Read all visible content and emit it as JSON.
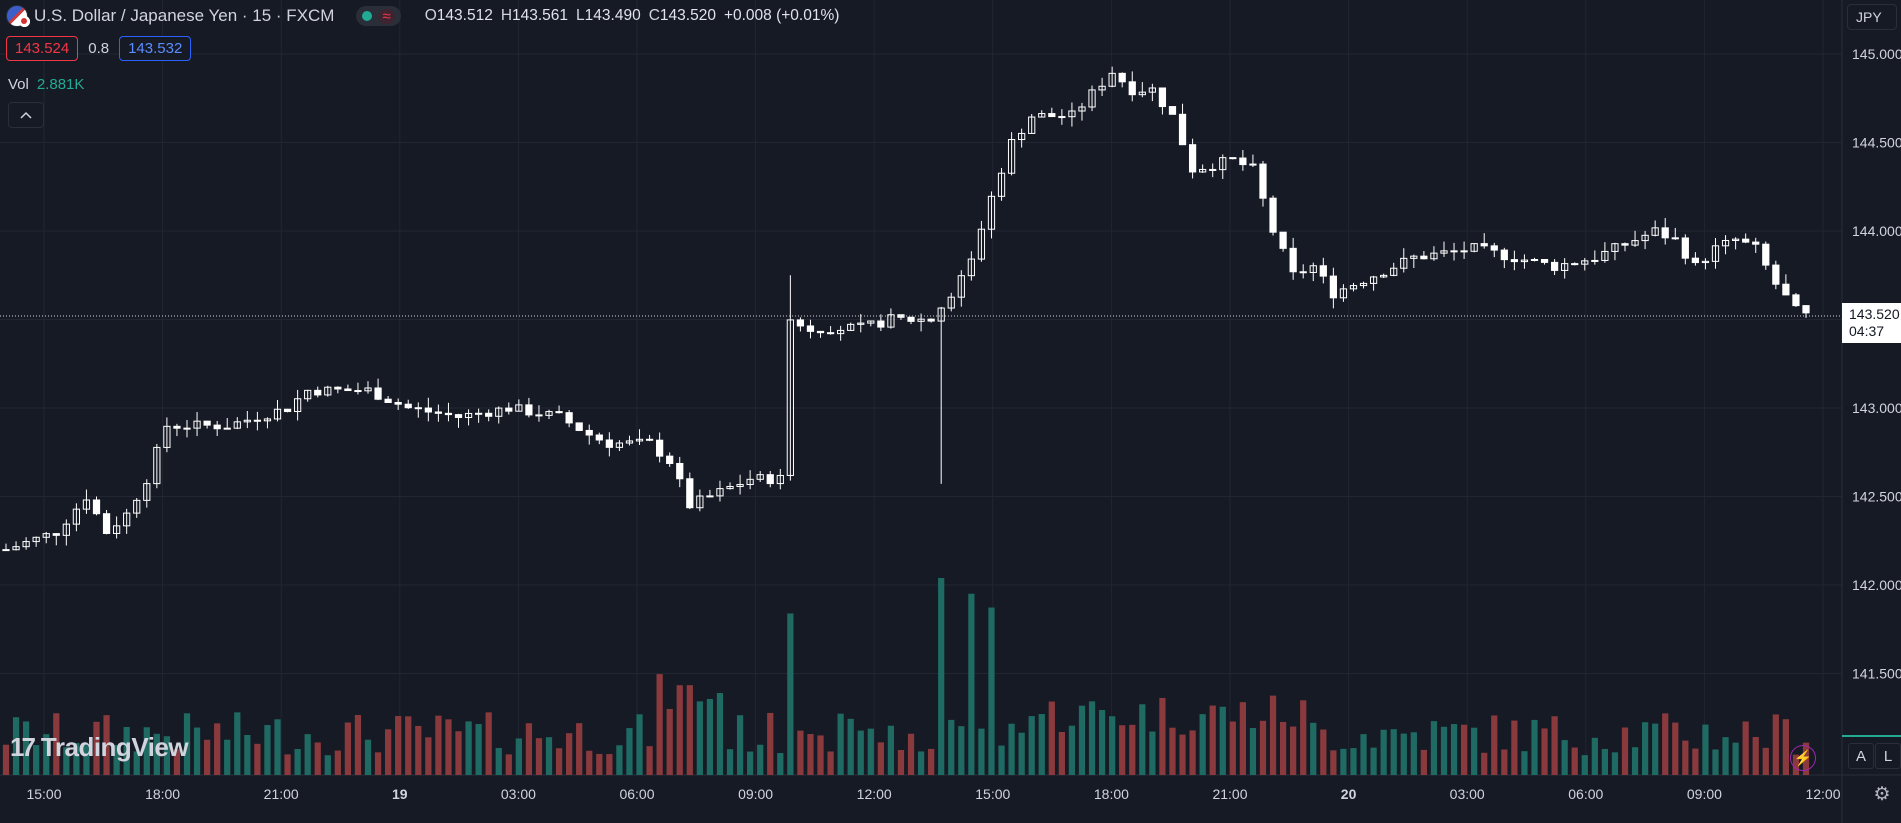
{
  "header": {
    "symbol_title": "U.S. Dollar / Japanese Yen · 15 · FXCM",
    "ohlc": {
      "o_label": "O",
      "o_value": "143.512",
      "h_label": "H",
      "h_value": "143.561",
      "l_label": "L",
      "l_value": "143.490",
      "c_label": "C",
      "c_value": "143.520",
      "change": "+0.008 (+0.01%)"
    },
    "bid": "143.524",
    "spread": "0.8",
    "ask": "143.532",
    "volume_label": "Vol",
    "volume_value": "2.881K",
    "collapse_icon": "chevron-up-icon",
    "wave_icon": "≈"
  },
  "currency_button": "JPY",
  "last_price_label": {
    "price": "143.520",
    "countdown": "04:37"
  },
  "logo_text": "TradingView",
  "logo_mark": "17",
  "scale_buttons": {
    "auto": "A",
    "log": "L"
  },
  "icons": {
    "bolt": "⚡",
    "gear": "⚙"
  },
  "colors": {
    "background": "#161a25",
    "grid": "#222633",
    "up_volume": "#1f6b63",
    "down_volume": "#8a3a3d",
    "candle": "#ffffff",
    "axis_text": "#d1d4dc"
  },
  "chart_data": {
    "type": "candlestick",
    "interval_minutes": 15,
    "y_axis": {
      "ticks": [
        "145.000",
        "144.500",
        "144.000",
        "143.500",
        "143.000",
        "142.500",
        "142.000",
        "141.500"
      ],
      "ylim": [
        141.2,
        145.3
      ]
    },
    "x_axis": {
      "ticks": [
        "15:00",
        "18:00",
        "21:00",
        "19",
        "03:00",
        "06:00",
        "09:00",
        "12:00",
        "15:00",
        "18:00",
        "21:00",
        "20",
        "03:00",
        "06:00",
        "09:00",
        "12:00"
      ],
      "bold_ticks": [
        "19",
        "20"
      ]
    },
    "last_price": 143.52,
    "candle_count": 180,
    "close_path": [
      [
        0,
        142.2
      ],
      [
        5,
        142.3
      ],
      [
        8,
        142.5
      ],
      [
        10,
        142.3
      ],
      [
        12,
        142.4
      ],
      [
        14,
        142.6
      ],
      [
        16,
        142.9
      ],
      [
        22,
        142.9
      ],
      [
        28,
        143.0
      ],
      [
        30,
        143.1
      ],
      [
        36,
        143.1
      ],
      [
        40,
        143.0
      ],
      [
        45,
        142.95
      ],
      [
        50,
        143.0
      ],
      [
        55,
        142.95
      ],
      [
        58,
        142.85
      ],
      [
        60,
        142.8
      ],
      [
        64,
        142.8
      ],
      [
        66,
        142.7
      ],
      [
        68,
        142.45
      ],
      [
        70,
        142.5
      ],
      [
        74,
        142.6
      ],
      [
        77,
        142.6
      ],
      [
        78,
        143.5
      ],
      [
        80,
        143.45
      ],
      [
        85,
        143.45
      ],
      [
        88,
        143.5
      ],
      [
        92,
        143.5
      ],
      [
        94,
        143.65
      ],
      [
        96,
        143.85
      ],
      [
        98,
        144.2
      ],
      [
        100,
        144.5
      ],
      [
        102,
        144.65
      ],
      [
        106,
        144.65
      ],
      [
        110,
        144.9
      ],
      [
        112,
        144.8
      ],
      [
        114,
        144.8
      ],
      [
        116,
        144.65
      ],
      [
        118,
        144.35
      ],
      [
        122,
        144.4
      ],
      [
        124,
        144.35
      ],
      [
        126,
        144.0
      ],
      [
        128,
        143.75
      ],
      [
        130,
        143.8
      ],
      [
        132,
        143.65
      ],
      [
        136,
        143.75
      ],
      [
        140,
        143.85
      ],
      [
        146,
        143.9
      ],
      [
        150,
        143.85
      ],
      [
        154,
        143.8
      ],
      [
        158,
        143.85
      ],
      [
        162,
        143.95
      ],
      [
        164,
        144.0
      ],
      [
        166,
        143.95
      ],
      [
        168,
        143.8
      ],
      [
        170,
        143.9
      ],
      [
        172,
        143.95
      ],
      [
        174,
        143.9
      ],
      [
        176,
        143.7
      ],
      [
        178,
        143.55
      ],
      [
        179,
        143.52
      ]
    ],
    "volume": {
      "spikes": [
        {
          "index": 78,
          "relative": 0.82
        },
        {
          "index": 93,
          "relative": 1.0
        },
        {
          "index": 96,
          "relative": 0.92
        },
        {
          "index": 98,
          "relative": 0.85
        }
      ]
    }
  }
}
